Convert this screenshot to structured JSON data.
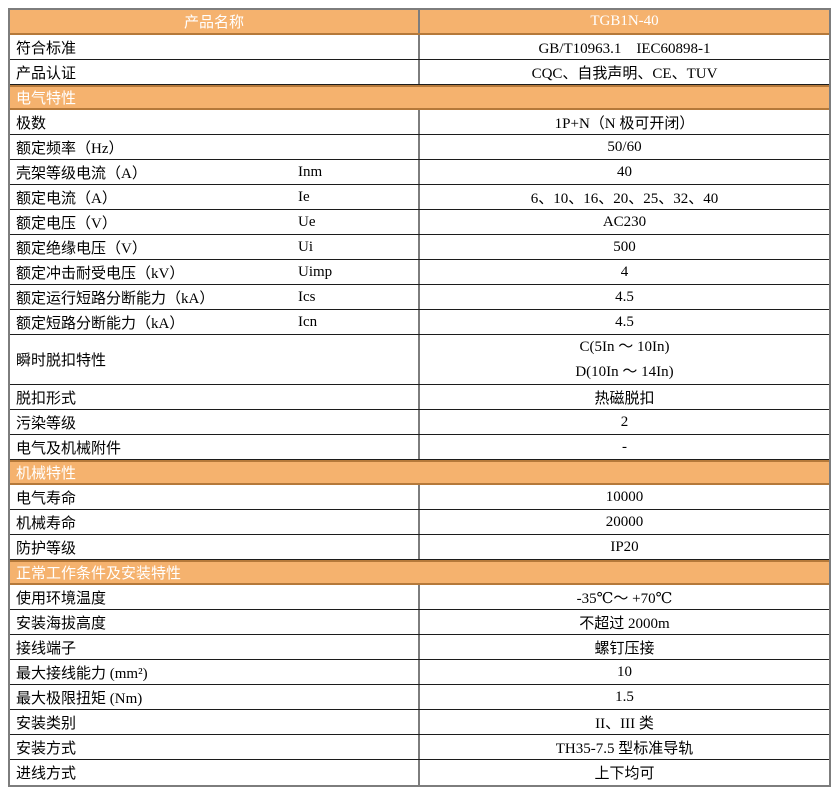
{
  "document_title": "TGB1N-40 产品规格表",
  "colors": {
    "band_background": "#f5b26e",
    "band_border": "#b5793a",
    "band_text": "#ffffff",
    "row_border": "#1c1c1c",
    "outer_border": "#7d7d7d",
    "body_text": "#000000"
  },
  "table": {
    "rows": [
      {
        "type": "header",
        "label": "产品名称",
        "value": "TGB1N-40"
      },
      {
        "type": "data",
        "label": "符合标准",
        "value": "GB/T10963.1　IEC60898-1"
      },
      {
        "type": "data",
        "label": "产品认证",
        "value": "CQC、自我声明、CE、TUV"
      },
      {
        "type": "section",
        "label": "电气特性"
      },
      {
        "type": "data",
        "label": "极数",
        "value": "1P+N（N 极可开闭）"
      },
      {
        "type": "data",
        "label": "额定频率（Hz）",
        "value": "50/60"
      },
      {
        "type": "data",
        "label": "壳架等级电流（A）",
        "symbol": "Inm",
        "value": "40"
      },
      {
        "type": "data",
        "label": "额定电流（A）",
        "symbol": "Ie",
        "value": "6、10、16、20、25、32、40"
      },
      {
        "type": "data",
        "label": "额定电压（V）",
        "symbol": "Ue",
        "value": "AC230"
      },
      {
        "type": "data",
        "label": "额定绝缘电压（V）",
        "symbol": "Ui",
        "value": "500"
      },
      {
        "type": "data",
        "label": "额定冲击耐受电压（kV）",
        "symbol": "Uimp",
        "value": "4"
      },
      {
        "type": "data",
        "label": "额定运行短路分断能力（kA）",
        "symbol": "Ics",
        "value": "4.5"
      },
      {
        "type": "data",
        "label": "额定短路分断能力（kA）",
        "symbol": "Icn",
        "value": "4.5"
      },
      {
        "type": "data2",
        "label": "瞬时脱扣特性",
        "value_lines": [
          "C(5In ～ 10In)",
          "D(10In ～ 14In)"
        ]
      },
      {
        "type": "data",
        "label": "脱扣形式",
        "value": "热磁脱扣"
      },
      {
        "type": "data",
        "label": "污染等级",
        "value": "2"
      },
      {
        "type": "data",
        "label": "电气及机械附件",
        "value": "-"
      },
      {
        "type": "section",
        "label": "机械特性"
      },
      {
        "type": "data",
        "label": "电气寿命",
        "value": "10000"
      },
      {
        "type": "data",
        "label": "机械寿命",
        "value": "20000"
      },
      {
        "type": "data",
        "label": "防护等级",
        "value": "IP20"
      },
      {
        "type": "section",
        "label": "正常工作条件及安装特性"
      },
      {
        "type": "data",
        "label": "使用环境温度",
        "value": "-35℃～ +70℃"
      },
      {
        "type": "data",
        "label": "安装海拔高度",
        "value": "不超过 2000m"
      },
      {
        "type": "data",
        "label": "接线端子",
        "value": "螺钉压接"
      },
      {
        "type": "data",
        "label": "最大接线能力 (mm²)",
        "value": "10"
      },
      {
        "type": "data",
        "label": "最大极限扭矩 (Nm)",
        "value": "1.5"
      },
      {
        "type": "data",
        "label": "安装类别",
        "value": "II、III 类"
      },
      {
        "type": "data",
        "label": "安装方式",
        "value": "TH35-7.5 型标准导轨"
      },
      {
        "type": "data",
        "label": "进线方式",
        "value": "上下均可"
      }
    ]
  }
}
